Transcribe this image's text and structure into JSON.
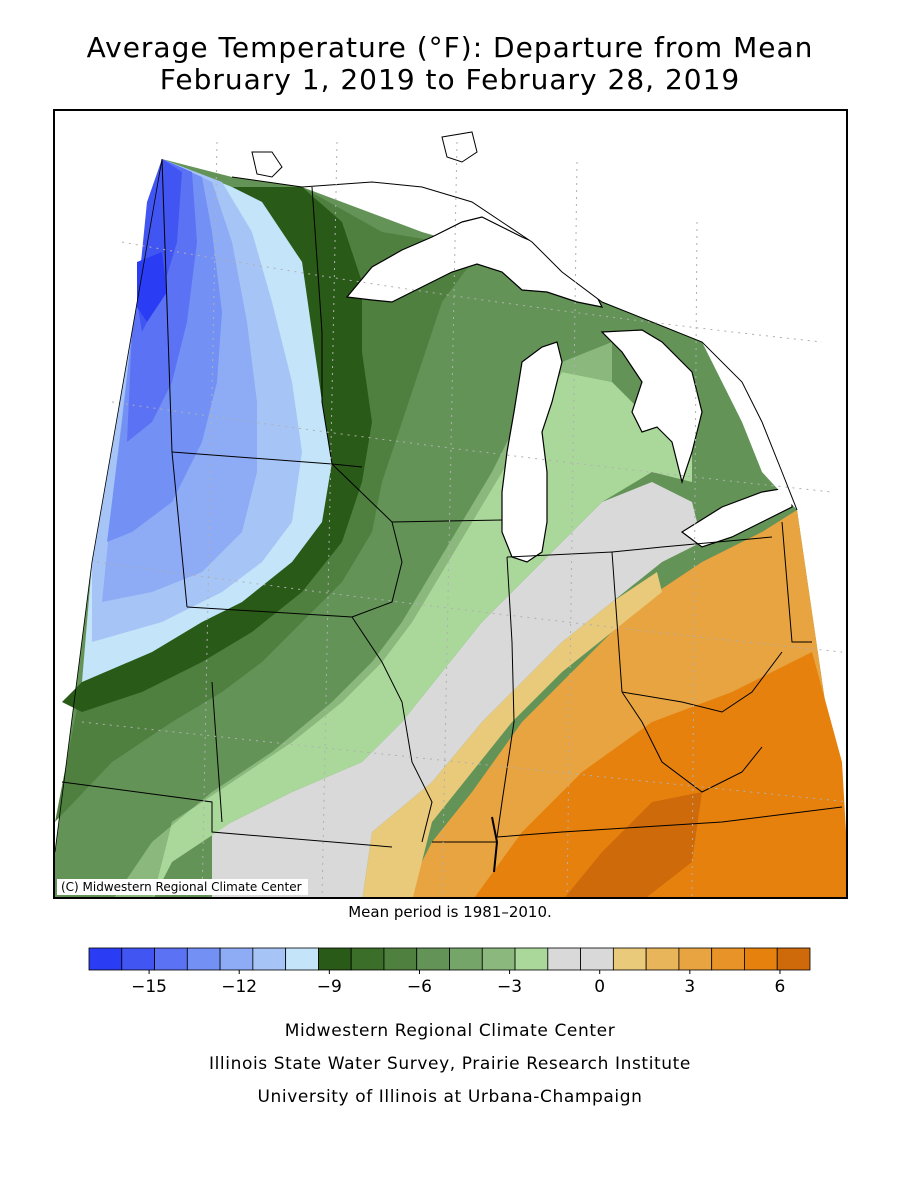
{
  "title": {
    "line1": "Average Temperature (°F): Departure from Mean",
    "line2": "February 1, 2019 to February 28, 2019"
  },
  "map": {
    "copyright": "(C) Midwestern Regional Climate Center",
    "lake_color": "#ffffff",
    "grid_color": "#b0b0b0"
  },
  "mean_period": "Mean period is 1981–2010.",
  "legend": {
    "colors": [
      "#2b3cf5",
      "#4155f2",
      "#5b72f5",
      "#7390f5",
      "#8eabf5",
      "#a7c4f7",
      "#c4e4fa",
      "#2a5a18",
      "#3b6e28",
      "#4f8040",
      "#639356",
      "#76a56a",
      "#8bb97d",
      "#a9d89a",
      "#d9d9d9",
      "#d9d9d9",
      "#e9c97a",
      "#e9b55a",
      "#e8a440",
      "#e89328",
      "#e6810e",
      "#cf6a0a"
    ],
    "tick_labels": [
      "−15",
      "−12",
      "−9",
      "−6",
      "−3",
      "0",
      "3",
      "6"
    ],
    "tick_values": [
      -15,
      -12,
      -9,
      -6,
      -3,
      0,
      3,
      6
    ],
    "range": [
      -17,
      7
    ]
  },
  "footer": {
    "line1": "Midwestern Regional Climate Center",
    "line2": "Illinois State Water Survey, Prairie Research Institute",
    "line3": "University of Illinois at Urbana-Champaign"
  }
}
